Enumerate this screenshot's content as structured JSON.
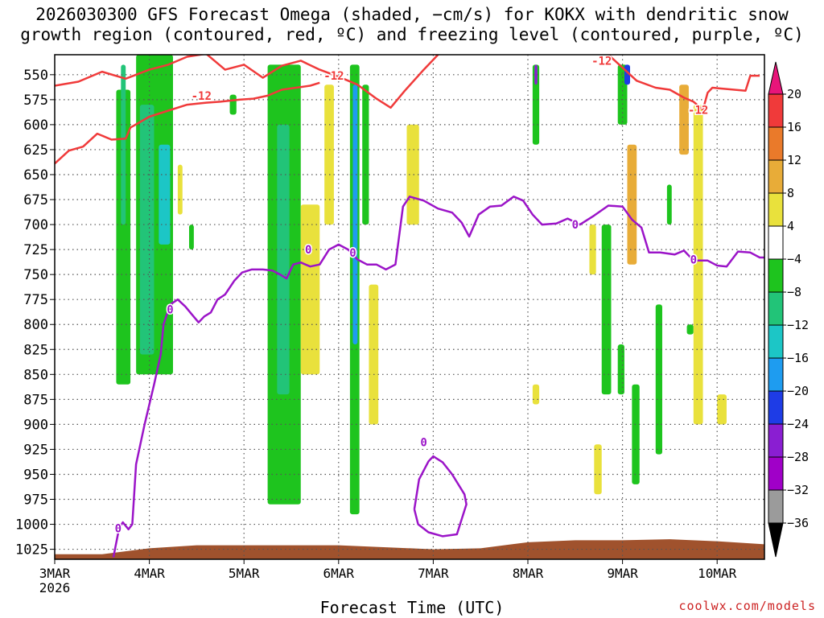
{
  "title": {
    "line1": "2026030300 GFS Forecast Omega (shaded, −cm/s) for KOKX with dendritic snow",
    "line2": "growth region (contoured, red, ºC) and freezing level (contoured, purple, ºC)"
  },
  "credit": "coolwx.com/models",
  "chart_data": {
    "type": "heatmap",
    "title": "2026030300 GFS Forecast Omega (shaded, −cm/s) for KOKX with dendritic snow growth region (contoured, red, ºC) and freezing level (contoured, purple, ºC)",
    "xlabel": "Forecast Time (UTC)",
    "ylabel": "",
    "x_range_days": [
      0,
      7.5
    ],
    "y_range_hpa": [
      1035,
      530
    ],
    "y_ticks": [
      550,
      575,
      600,
      625,
      650,
      675,
      700,
      725,
      750,
      775,
      800,
      825,
      850,
      875,
      900,
      925,
      950,
      975,
      1000,
      1025
    ],
    "x_ticks": [
      {
        "day": 0,
        "label": "3MAR",
        "sub": "2026"
      },
      {
        "day": 1,
        "label": "4MAR",
        "sub": ""
      },
      {
        "day": 2,
        "label": "5MAR",
        "sub": ""
      },
      {
        "day": 3,
        "label": "6MAR",
        "sub": ""
      },
      {
        "day": 4,
        "label": "7MAR",
        "sub": ""
      },
      {
        "day": 5,
        "label": "8MAR",
        "sub": ""
      },
      {
        "day": 6,
        "label": "9MAR",
        "sub": ""
      },
      {
        "day": 7,
        "label": "10MAR",
        "sub": ""
      }
    ],
    "colorbar": {
      "labels": [
        "20",
        "16",
        "12",
        "8",
        "4",
        "−4",
        "−8",
        "−12",
        "−16",
        "−20",
        "−24",
        "−28",
        "−32",
        "−36"
      ],
      "bins": [
        {
          "from": 20,
          "to": 16,
          "color": "#f03a3a"
        },
        {
          "from": 16,
          "to": 12,
          "color": "#ea7a2a"
        },
        {
          "from": 12,
          "to": 8,
          "color": "#e8ac38"
        },
        {
          "from": 8,
          "to": 4,
          "color": "#e9e13c"
        },
        {
          "from": 4,
          "to": -4,
          "color": "#ffffff"
        },
        {
          "from": -4,
          "to": -8,
          "color": "#1ec41e"
        },
        {
          "from": -8,
          "to": -12,
          "color": "#22c478"
        },
        {
          "from": -12,
          "to": -16,
          "color": "#1cc6c6"
        },
        {
          "from": -16,
          "to": -20,
          "color": "#1e9cf0"
        },
        {
          "from": -20,
          "to": -24,
          "color": "#1e3ce6"
        },
        {
          "from": -24,
          "to": -28,
          "color": "#8a1ed2"
        },
        {
          "from": -28,
          "to": -32,
          "color": "#a000c8"
        },
        {
          "from": -32,
          "to": -36,
          "color": "#9b9b9b"
        }
      ],
      "top_arrow_color": "#e8157a",
      "bottom_arrow_color": "#000000"
    },
    "colors": {
      "dgz_contour": "#f03a3a",
      "freezing_contour": "#9b14c8",
      "terrain": "#a0522d",
      "grid": "#555555"
    },
    "contour_labels": [
      {
        "text": "-12",
        "day": 1.55,
        "p": 571,
        "series": "dgz"
      },
      {
        "text": "-12",
        "day": 2.95,
        "p": 551,
        "series": "dgz"
      },
      {
        "text": "-12",
        "day": 5.78,
        "p": 536,
        "series": "dgz"
      },
      {
        "text": "-12",
        "day": 6.8,
        "p": 585,
        "series": "dgz"
      },
      {
        "text": "0",
        "day": 1.22,
        "p": 785,
        "series": "frz"
      },
      {
        "text": "0",
        "day": 2.68,
        "p": 725,
        "series": "frz"
      },
      {
        "text": "0",
        "day": 3.15,
        "p": 728,
        "series": "frz"
      },
      {
        "text": "0",
        "day": 3.9,
        "p": 918,
        "series": "frz"
      },
      {
        "text": "0",
        "day": 5.5,
        "p": 700,
        "series": "frz"
      },
      {
        "text": "0",
        "day": 6.75,
        "p": 735,
        "series": "frz"
      },
      {
        "text": "0",
        "day": 0.67,
        "p": 1004,
        "series": "frz"
      }
    ],
    "series": [
      {
        "name": "dgz-minus12-upper",
        "color": "#f03a3a",
        "points": [
          [
            0,
            561
          ],
          [
            0.25,
            557
          ],
          [
            0.5,
            547
          ],
          [
            0.75,
            554
          ],
          [
            1.0,
            545
          ],
          [
            1.2,
            540
          ],
          [
            1.4,
            532
          ],
          [
            1.6,
            529
          ],
          [
            1.8,
            545
          ],
          [
            2.0,
            540
          ],
          [
            2.2,
            553
          ],
          [
            2.4,
            541
          ],
          [
            2.6,
            536
          ],
          [
            2.8,
            545
          ],
          [
            3.0,
            552
          ],
          [
            3.2,
            560
          ],
          [
            3.4,
            574
          ],
          [
            3.55,
            583
          ],
          [
            3.7,
            566
          ],
          [
            3.9,
            545
          ],
          [
            4.05,
            530
          ]
        ]
      },
      {
        "name": "dgz-minus12-lower",
        "color": "#f03a3a",
        "points": [
          [
            0,
            639
          ],
          [
            0.15,
            626
          ],
          [
            0.3,
            622
          ],
          [
            0.45,
            609
          ],
          [
            0.6,
            615
          ],
          [
            0.75,
            614
          ],
          [
            0.8,
            603
          ],
          [
            1.0,
            592
          ],
          [
            1.2,
            586
          ],
          [
            1.4,
            580
          ],
          [
            1.6,
            578
          ],
          [
            1.75,
            577
          ],
          [
            1.95,
            575
          ],
          [
            2.1,
            574
          ],
          [
            2.25,
            571
          ],
          [
            2.4,
            565
          ],
          [
            2.55,
            563
          ],
          [
            2.7,
            561
          ],
          [
            2.8,
            558
          ]
        ]
      },
      {
        "name": "dgz-minus12-right",
        "color": "#f03a3a",
        "points": [
          [
            5.85,
            530
          ],
          [
            6.0,
            543
          ],
          [
            6.15,
            556
          ],
          [
            6.35,
            563
          ],
          [
            6.5,
            565
          ],
          [
            6.65,
            573
          ],
          [
            6.75,
            577
          ],
          [
            6.85,
            585
          ],
          [
            6.9,
            568
          ],
          [
            6.95,
            563
          ],
          [
            7.3,
            566
          ],
          [
            7.35,
            551
          ],
          [
            7.45,
            551
          ]
        ]
      },
      {
        "name": "freezing-level",
        "color": "#9b14c8",
        "points": [
          [
            0.62,
            1033
          ],
          [
            0.68,
            1004
          ],
          [
            0.72,
            998
          ],
          [
            0.78,
            1005
          ],
          [
            0.82,
            1000
          ],
          [
            0.86,
            940
          ],
          [
            0.95,
            900
          ],
          [
            1.05,
            860
          ],
          [
            1.12,
            830
          ],
          [
            1.15,
            800
          ],
          [
            1.22,
            780
          ],
          [
            1.3,
            775
          ],
          [
            1.38,
            782
          ],
          [
            1.45,
            790
          ],
          [
            1.52,
            798
          ],
          [
            1.58,
            792
          ],
          [
            1.65,
            788
          ],
          [
            1.72,
            775
          ],
          [
            1.8,
            770
          ],
          [
            1.9,
            756
          ],
          [
            1.98,
            748
          ],
          [
            2.08,
            745
          ],
          [
            2.2,
            745
          ],
          [
            2.3,
            746
          ],
          [
            2.38,
            750
          ],
          [
            2.45,
            754
          ],
          [
            2.52,
            740
          ],
          [
            2.6,
            738
          ],
          [
            2.7,
            742
          ],
          [
            2.8,
            740
          ],
          [
            2.9,
            725
          ],
          [
            3.0,
            720
          ],
          [
            3.1,
            725
          ],
          [
            3.2,
            735
          ],
          [
            3.3,
            740
          ],
          [
            3.4,
            740
          ],
          [
            3.5,
            745
          ],
          [
            3.6,
            740
          ],
          [
            3.68,
            682
          ],
          [
            3.75,
            672
          ],
          [
            3.9,
            676
          ],
          [
            4.05,
            684
          ],
          [
            4.2,
            688
          ],
          [
            4.3,
            698
          ],
          [
            4.38,
            712
          ],
          [
            4.48,
            690
          ],
          [
            4.6,
            682
          ],
          [
            4.72,
            681
          ],
          [
            4.85,
            672
          ],
          [
            4.95,
            676
          ],
          [
            5.05,
            690
          ],
          [
            5.15,
            700
          ],
          [
            5.3,
            699
          ],
          [
            5.42,
            694
          ],
          [
            5.55,
            700
          ],
          [
            5.7,
            691
          ],
          [
            5.85,
            681
          ],
          [
            6.0,
            682
          ],
          [
            6.1,
            695
          ],
          [
            6.2,
            703
          ],
          [
            6.28,
            728
          ],
          [
            6.4,
            728
          ],
          [
            6.55,
            730
          ],
          [
            6.65,
            726
          ],
          [
            6.75,
            736
          ],
          [
            6.9,
            736
          ],
          [
            7.0,
            741
          ],
          [
            7.1,
            742
          ],
          [
            7.22,
            727
          ],
          [
            7.35,
            728
          ],
          [
            7.45,
            733
          ],
          [
            7.5,
            733
          ]
        ]
      },
      {
        "name": "freezing-level-closed-loop",
        "color": "#9b14c8",
        "points": [
          [
            3.8,
            985
          ],
          [
            3.85,
            955
          ],
          [
            3.95,
            937
          ],
          [
            4.0,
            932
          ],
          [
            4.1,
            938
          ],
          [
            4.2,
            950
          ],
          [
            4.33,
            970
          ],
          [
            4.35,
            980
          ],
          [
            4.25,
            1010
          ],
          [
            4.1,
            1012
          ],
          [
            3.95,
            1008
          ],
          [
            3.84,
            1000
          ],
          [
            3.8,
            985
          ]
        ]
      }
    ],
    "shaded_regions": [
      {
        "x0": 0.65,
        "x1": 0.8,
        "p0": 565,
        "p1": 860,
        "value": -6
      },
      {
        "x0": 0.7,
        "x1": 0.75,
        "p0": 540,
        "p1": 700,
        "value": -10
      },
      {
        "x0": 0.86,
        "x1": 1.25,
        "p0": 530,
        "p1": 850,
        "value": -6
      },
      {
        "x0": 0.9,
        "x1": 1.05,
        "p0": 580,
        "p1": 830,
        "value": -10
      },
      {
        "x0": 1.1,
        "x1": 1.22,
        "p0": 620,
        "p1": 720,
        "value": -14
      },
      {
        "x0": 1.3,
        "x1": 1.35,
        "p0": 640,
        "p1": 690,
        "value": 6
      },
      {
        "x0": 1.42,
        "x1": 1.47,
        "p0": 700,
        "p1": 725,
        "value": -6
      },
      {
        "x0": 1.85,
        "x1": 1.92,
        "p0": 570,
        "p1": 590,
        "value": -6
      },
      {
        "x0": 2.25,
        "x1": 2.6,
        "p0": 540,
        "p1": 980,
        "value": -6
      },
      {
        "x0": 2.35,
        "x1": 2.48,
        "p0": 600,
        "p1": 870,
        "value": -10
      },
      {
        "x0": 2.6,
        "x1": 2.8,
        "p0": 680,
        "p1": 850,
        "value": 6
      },
      {
        "x0": 2.85,
        "x1": 2.95,
        "p0": 560,
        "p1": 700,
        "value": 6
      },
      {
        "x0": 3.12,
        "x1": 3.22,
        "p0": 540,
        "p1": 990,
        "value": -6
      },
      {
        "x0": 3.15,
        "x1": 3.2,
        "p0": 560,
        "p1": 820,
        "value": -18
      },
      {
        "x0": 3.25,
        "x1": 3.32,
        "p0": 560,
        "p1": 700,
        "value": -6
      },
      {
        "x0": 3.32,
        "x1": 3.42,
        "p0": 760,
        "p1": 900,
        "value": 6
      },
      {
        "x0": 3.72,
        "x1": 3.85,
        "p0": 600,
        "p1": 700,
        "value": 6
      },
      {
        "x0": 5.05,
        "x1": 5.12,
        "p0": 540,
        "p1": 620,
        "value": -6
      },
      {
        "x0": 5.07,
        "x1": 5.1,
        "p0": 540,
        "p1": 560,
        "value": -26
      },
      {
        "x0": 5.05,
        "x1": 5.12,
        "p0": 860,
        "p1": 880,
        "value": 6
      },
      {
        "x0": 5.65,
        "x1": 5.72,
        "p0": 700,
        "p1": 750,
        "value": 6
      },
      {
        "x0": 5.7,
        "x1": 5.78,
        "p0": 920,
        "p1": 970,
        "value": 6
      },
      {
        "x0": 5.95,
        "x1": 6.05,
        "p0": 540,
        "p1": 600,
        "value": -6
      },
      {
        "x0": 6.02,
        "x1": 6.08,
        "p0": 540,
        "p1": 560,
        "value": -22
      },
      {
        "x0": 6.05,
        "x1": 6.15,
        "p0": 620,
        "p1": 740,
        "value": 10
      },
      {
        "x0": 5.78,
        "x1": 5.88,
        "p0": 700,
        "p1": 870,
        "value": -6
      },
      {
        "x0": 5.95,
        "x1": 6.02,
        "p0": 820,
        "p1": 870,
        "value": -6
      },
      {
        "x0": 6.1,
        "x1": 6.18,
        "p0": 860,
        "p1": 960,
        "value": -6
      },
      {
        "x0": 6.35,
        "x1": 6.42,
        "p0": 780,
        "p1": 930,
        "value": -6
      },
      {
        "x0": 6.47,
        "x1": 6.52,
        "p0": 660,
        "p1": 700,
        "value": -6
      },
      {
        "x0": 6.6,
        "x1": 6.7,
        "p0": 560,
        "p1": 630,
        "value": 10
      },
      {
        "x0": 6.68,
        "x1": 6.75,
        "p0": 800,
        "p1": 810,
        "value": -6
      },
      {
        "x0": 6.75,
        "x1": 6.85,
        "p0": 580,
        "p1": 900,
        "value": 6
      },
      {
        "x0": 7.0,
        "x1": 7.1,
        "p0": 870,
        "p1": 900,
        "value": 6
      }
    ],
    "terrain": {
      "color": "#a0522d",
      "points": [
        [
          0,
          1030
        ],
        [
          0.5,
          1030
        ],
        [
          1.0,
          1024
        ],
        [
          1.5,
          1021
        ],
        [
          2.0,
          1021
        ],
        [
          3.0,
          1021
        ],
        [
          3.5,
          1023
        ],
        [
          4.0,
          1025
        ],
        [
          4.5,
          1024
        ],
        [
          5.0,
          1018
        ],
        [
          5.5,
          1016
        ],
        [
          6.0,
          1016
        ],
        [
          6.5,
          1015
        ],
        [
          7.0,
          1017
        ],
        [
          7.5,
          1020
        ]
      ]
    }
  }
}
